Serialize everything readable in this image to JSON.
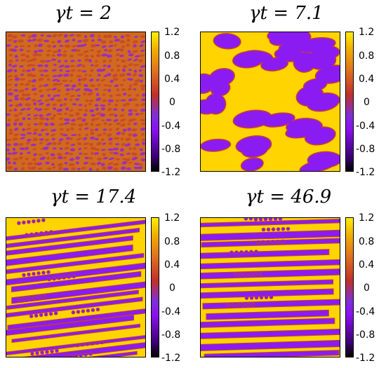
{
  "panels": [
    {
      "title_value": "2",
      "colorbar_ticks": [
        "1.2",
        "0.8",
        "0.4",
        "0",
        "-0.4",
        "-0.8",
        "-1.2"
      ]
    },
    {
      "title_value": "7.1",
      "colorbar_ticks": [
        "1.2",
        "0.8",
        "0.4",
        "0",
        "-0.4",
        "-0.8",
        "-1.2"
      ]
    },
    {
      "title_value": "17.4",
      "colorbar_ticks": [
        "1.2",
        "0.8",
        "0.4",
        "0",
        "-0.4",
        "-0.8",
        "-1.2"
      ]
    },
    {
      "title_value": "46.9",
      "colorbar_ticks": [
        "1.2",
        "0.8",
        "0.4",
        "0",
        "-0.4",
        "-0.8",
        "-1.2"
      ]
    }
  ],
  "title_prefix": "γt = ",
  "colors": {
    "positive": "#ffd400",
    "negative": "#8a1cf2",
    "interface": "#c8402a",
    "mid": "#d06a20"
  }
}
